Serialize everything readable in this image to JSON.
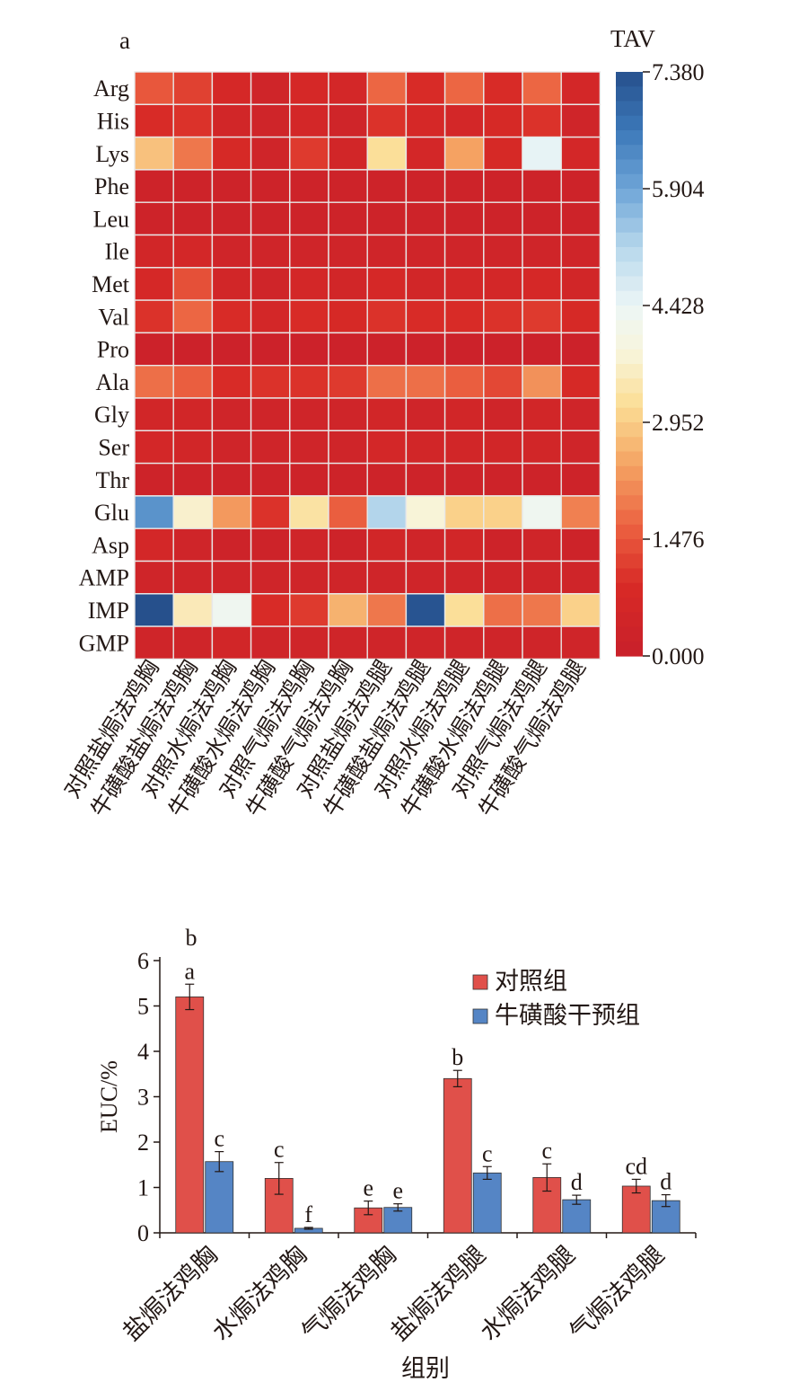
{
  "heatmap": {
    "panel_label": "a",
    "colorbar_title": "TAV",
    "colorbar_ticks": [
      "7.380",
      "5.904",
      "4.428",
      "2.952",
      "1.476",
      "0.000"
    ],
    "colorbar_range": [
      0,
      7.38
    ],
    "colors": {
      "low": "#c8202b",
      "high": "#26508c"
    }
  },
  "bar": {
    "legend": [
      "对照组",
      "牛磺酸干预组"
    ],
    "colors": {
      "control": "#e0504a",
      "taurine": "#5585c5"
    },
    "extra_letter": "b"
  },
  "chart_data": [
    {
      "type": "heatmap",
      "title": "",
      "rows": [
        "Arg",
        "His",
        "Lys",
        "Phe",
        "Leu",
        "Ile",
        "Met",
        "Val",
        "Pro",
        "Ala",
        "Gly",
        "Ser",
        "Thr",
        "Glu",
        "Asp",
        "AMP",
        "IMP",
        "GMP"
      ],
      "columns": [
        "对照盐焗法鸡胸",
        "牛磺酸盐焗法鸡胸",
        "对照水焗法鸡胸",
        "牛磺酸水焗法鸡胸",
        "对照气焗法鸡胸",
        "牛磺酸气焗法鸡胸",
        "对照盐焗法鸡腿",
        "牛磺酸盐焗法鸡腿",
        "对照水焗法鸡腿",
        "牛磺酸水焗法鸡腿",
        "对照气焗法鸡腿",
        "牛磺酸气焗法鸡腿"
      ],
      "values": [
        [
          1.5,
          1.2,
          0.7,
          0.4,
          0.7,
          0.6,
          1.7,
          0.9,
          1.7,
          0.9,
          1.7,
          0.6
        ],
        [
          0.9,
          1.0,
          0.5,
          0.4,
          0.6,
          0.4,
          1.0,
          0.7,
          0.6,
          0.8,
          1.0,
          0.4
        ],
        [
          2.8,
          1.9,
          0.8,
          0.4,
          1.1,
          0.5,
          3.2,
          0.6,
          2.4,
          0.8,
          4.5,
          0.6
        ],
        [
          0.3,
          0.3,
          0.3,
          0.3,
          0.3,
          0.3,
          0.3,
          0.3,
          0.3,
          0.3,
          0.3,
          0.3
        ],
        [
          0.3,
          0.3,
          0.3,
          0.3,
          0.3,
          0.3,
          0.3,
          0.3,
          0.3,
          0.3,
          0.3,
          0.3
        ],
        [
          0.5,
          0.6,
          0.4,
          0.4,
          0.4,
          0.4,
          0.4,
          0.4,
          0.4,
          0.4,
          0.4,
          0.4
        ],
        [
          0.7,
          1.4,
          0.5,
          0.4,
          0.6,
          0.5,
          0.7,
          0.5,
          0.6,
          0.6,
          0.7,
          0.5
        ],
        [
          1.0,
          1.7,
          0.9,
          0.6,
          0.9,
          0.8,
          1.0,
          0.9,
          0.9,
          1.0,
          1.1,
          0.8
        ],
        [
          0.2,
          0.2,
          0.2,
          0.2,
          0.2,
          0.2,
          0.2,
          0.2,
          0.2,
          0.2,
          0.2,
          0.2
        ],
        [
          1.8,
          1.6,
          0.9,
          1.0,
          1.0,
          1.1,
          1.8,
          1.8,
          1.6,
          1.3,
          2.2,
          0.8
        ],
        [
          0.5,
          0.5,
          0.4,
          0.4,
          0.4,
          0.4,
          0.5,
          0.4,
          0.5,
          0.4,
          0.5,
          0.4
        ],
        [
          0.6,
          0.5,
          0.4,
          0.4,
          0.4,
          0.4,
          0.6,
          0.5,
          0.5,
          0.5,
          0.5,
          0.4
        ],
        [
          0.3,
          0.3,
          0.3,
          0.3,
          0.3,
          0.3,
          0.3,
          0.3,
          0.3,
          0.3,
          0.3,
          0.3
        ],
        [
          6.2,
          3.7,
          2.3,
          1.0,
          3.3,
          1.6,
          5.2,
          3.8,
          3.0,
          3.0,
          4.3,
          2.0
        ],
        [
          0.6,
          0.4,
          0.3,
          0.3,
          0.4,
          0.3,
          0.5,
          0.4,
          0.5,
          0.3,
          0.4,
          0.3
        ],
        [
          0.4,
          0.4,
          0.4,
          0.4,
          0.4,
          0.4,
          0.4,
          0.4,
          0.4,
          0.4,
          0.4,
          0.4
        ],
        [
          7.4,
          3.5,
          4.3,
          0.9,
          1.1,
          2.6,
          1.9,
          7.3,
          3.2,
          1.8,
          1.9,
          3.0
        ],
        [
          0.4,
          0.4,
          0.5,
          0.4,
          0.4,
          0.4,
          0.4,
          0.4,
          0.4,
          0.4,
          0.4,
          0.4
        ]
      ]
    },
    {
      "type": "bar",
      "title": "",
      "xlabel": "组别",
      "ylabel": "EUC/%",
      "ylim": [
        0,
        6
      ],
      "yticks": [
        0,
        1,
        2,
        3,
        4,
        5,
        6
      ],
      "categories": [
        "盐焗法鸡胸",
        "水焗法鸡胸",
        "气焗法鸡胸",
        "盐焗法鸡腿",
        "水焗法鸡腿",
        "气焗法鸡腿"
      ],
      "series": [
        {
          "name": "对照组",
          "values": [
            5.2,
            1.2,
            0.55,
            3.4,
            1.22,
            1.03
          ],
          "errors": [
            0.28,
            0.35,
            0.15,
            0.18,
            0.3,
            0.15
          ],
          "letters": [
            "a",
            "c",
            "e",
            "b",
            "c",
            "cd"
          ]
        },
        {
          "name": "牛磺酸干预组",
          "values": [
            1.57,
            0.1,
            0.56,
            1.32,
            0.73,
            0.71
          ],
          "errors": [
            0.22,
            0.02,
            0.08,
            0.14,
            0.1,
            0.13
          ],
          "letters": [
            "c",
            "f",
            "e",
            "c",
            "d",
            "d"
          ]
        }
      ],
      "legend_position": "top-right",
      "grid": false
    }
  ]
}
